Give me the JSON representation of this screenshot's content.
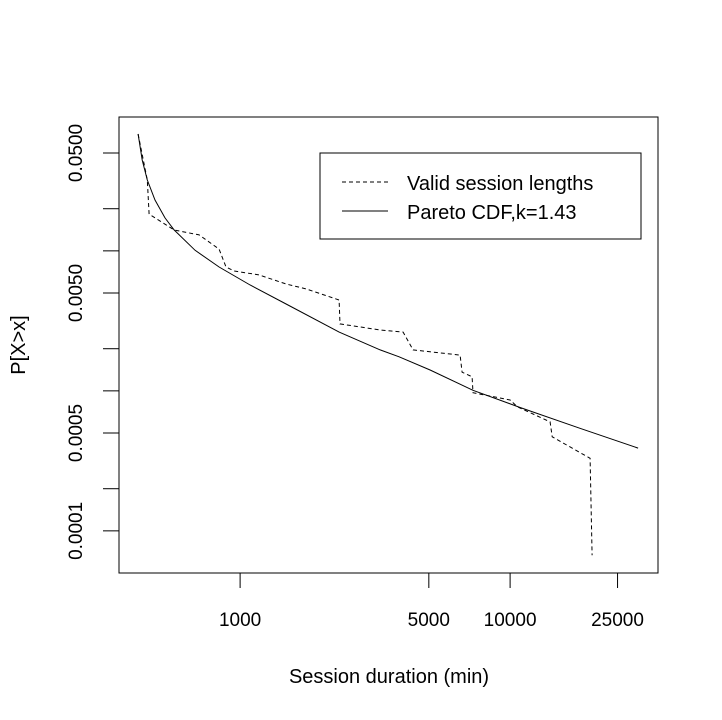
{
  "chart_data": {
    "type": "line",
    "title": "",
    "xlabel": "Session duration (min)",
    "ylabel": "P[X>x]",
    "xscale": "log",
    "yscale": "log",
    "xlim": [
      356,
      35300
    ],
    "ylim": [
      5e-05,
      0.0904
    ],
    "grid": false,
    "legend_position": "top-right",
    "x_ticks": [
      {
        "value": 1000,
        "label": "1000"
      },
      {
        "value": 5000,
        "label": "5000"
      },
      {
        "value": 10000,
        "label": "10000"
      },
      {
        "value": 25000,
        "label": "25000"
      }
    ],
    "y_ticks": [
      {
        "value": 0.05,
        "label": "0.0500"
      },
      {
        "value": 0.02,
        "label": ""
      },
      {
        "value": 0.01,
        "label": ""
      },
      {
        "value": 0.005,
        "label": "0.0050"
      },
      {
        "value": 0.002,
        "label": ""
      },
      {
        "value": 0.001,
        "label": ""
      },
      {
        "value": 0.0005,
        "label": "0.0005"
      },
      {
        "value": 0.0002,
        "label": ""
      },
      {
        "value": 0.0001,
        "label": "0.0001"
      }
    ],
    "series": [
      {
        "name": "Valid session lengths",
        "style": "dashed",
        "color": "#000000",
        "points": [
          [
            419,
            0.0684
          ],
          [
            453,
            0.0321
          ],
          [
            460,
            0.0183
          ],
          [
            570,
            0.0141
          ],
          [
            705,
            0.013
          ],
          [
            836,
            0.0103
          ],
          [
            887,
            0.00767
          ],
          [
            950,
            0.00718
          ],
          [
            1175,
            0.00673
          ],
          [
            1480,
            0.0058
          ],
          [
            1755,
            0.00535
          ],
          [
            2327,
            0.00446
          ],
          [
            2345,
            0.00301
          ],
          [
            3302,
            0.00272
          ],
          [
            4015,
            0.00263
          ],
          [
            4374,
            0.00196
          ],
          [
            6530,
            0.0018
          ],
          [
            6640,
            0.00136
          ],
          [
            7230,
            0.00126
          ],
          [
            7290,
            0.00097
          ],
          [
            10000,
            0.00086
          ],
          [
            10620,
            0.00077
          ],
          [
            14060,
            0.0006
          ],
          [
            14320,
            0.00047
          ],
          [
            19780,
            0.00033
          ],
          [
            20130,
            6.7e-05
          ]
        ]
      },
      {
        "name": "Pareto CDF,k=1.43",
        "style": "solid",
        "color": "#000000",
        "points": [
          [
            419,
            0.0684
          ],
          [
            434,
            0.0446
          ],
          [
            453,
            0.0321
          ],
          [
            484,
            0.0231
          ],
          [
            527,
            0.0172
          ],
          [
            570,
            0.0141
          ],
          [
            681,
            0.0101
          ],
          [
            836,
            0.00767
          ],
          [
            1089,
            0.0057
          ],
          [
            1480,
            0.00417
          ],
          [
            2327,
            0.00263
          ],
          [
            3302,
            0.00196
          ],
          [
            3880,
            0.00175
          ],
          [
            5055,
            0.00141
          ],
          [
            7290,
            0.00101
          ],
          [
            10890,
            0.00076
          ],
          [
            18150,
            0.00054
          ],
          [
            29790,
            0.00039
          ]
        ]
      }
    ]
  }
}
